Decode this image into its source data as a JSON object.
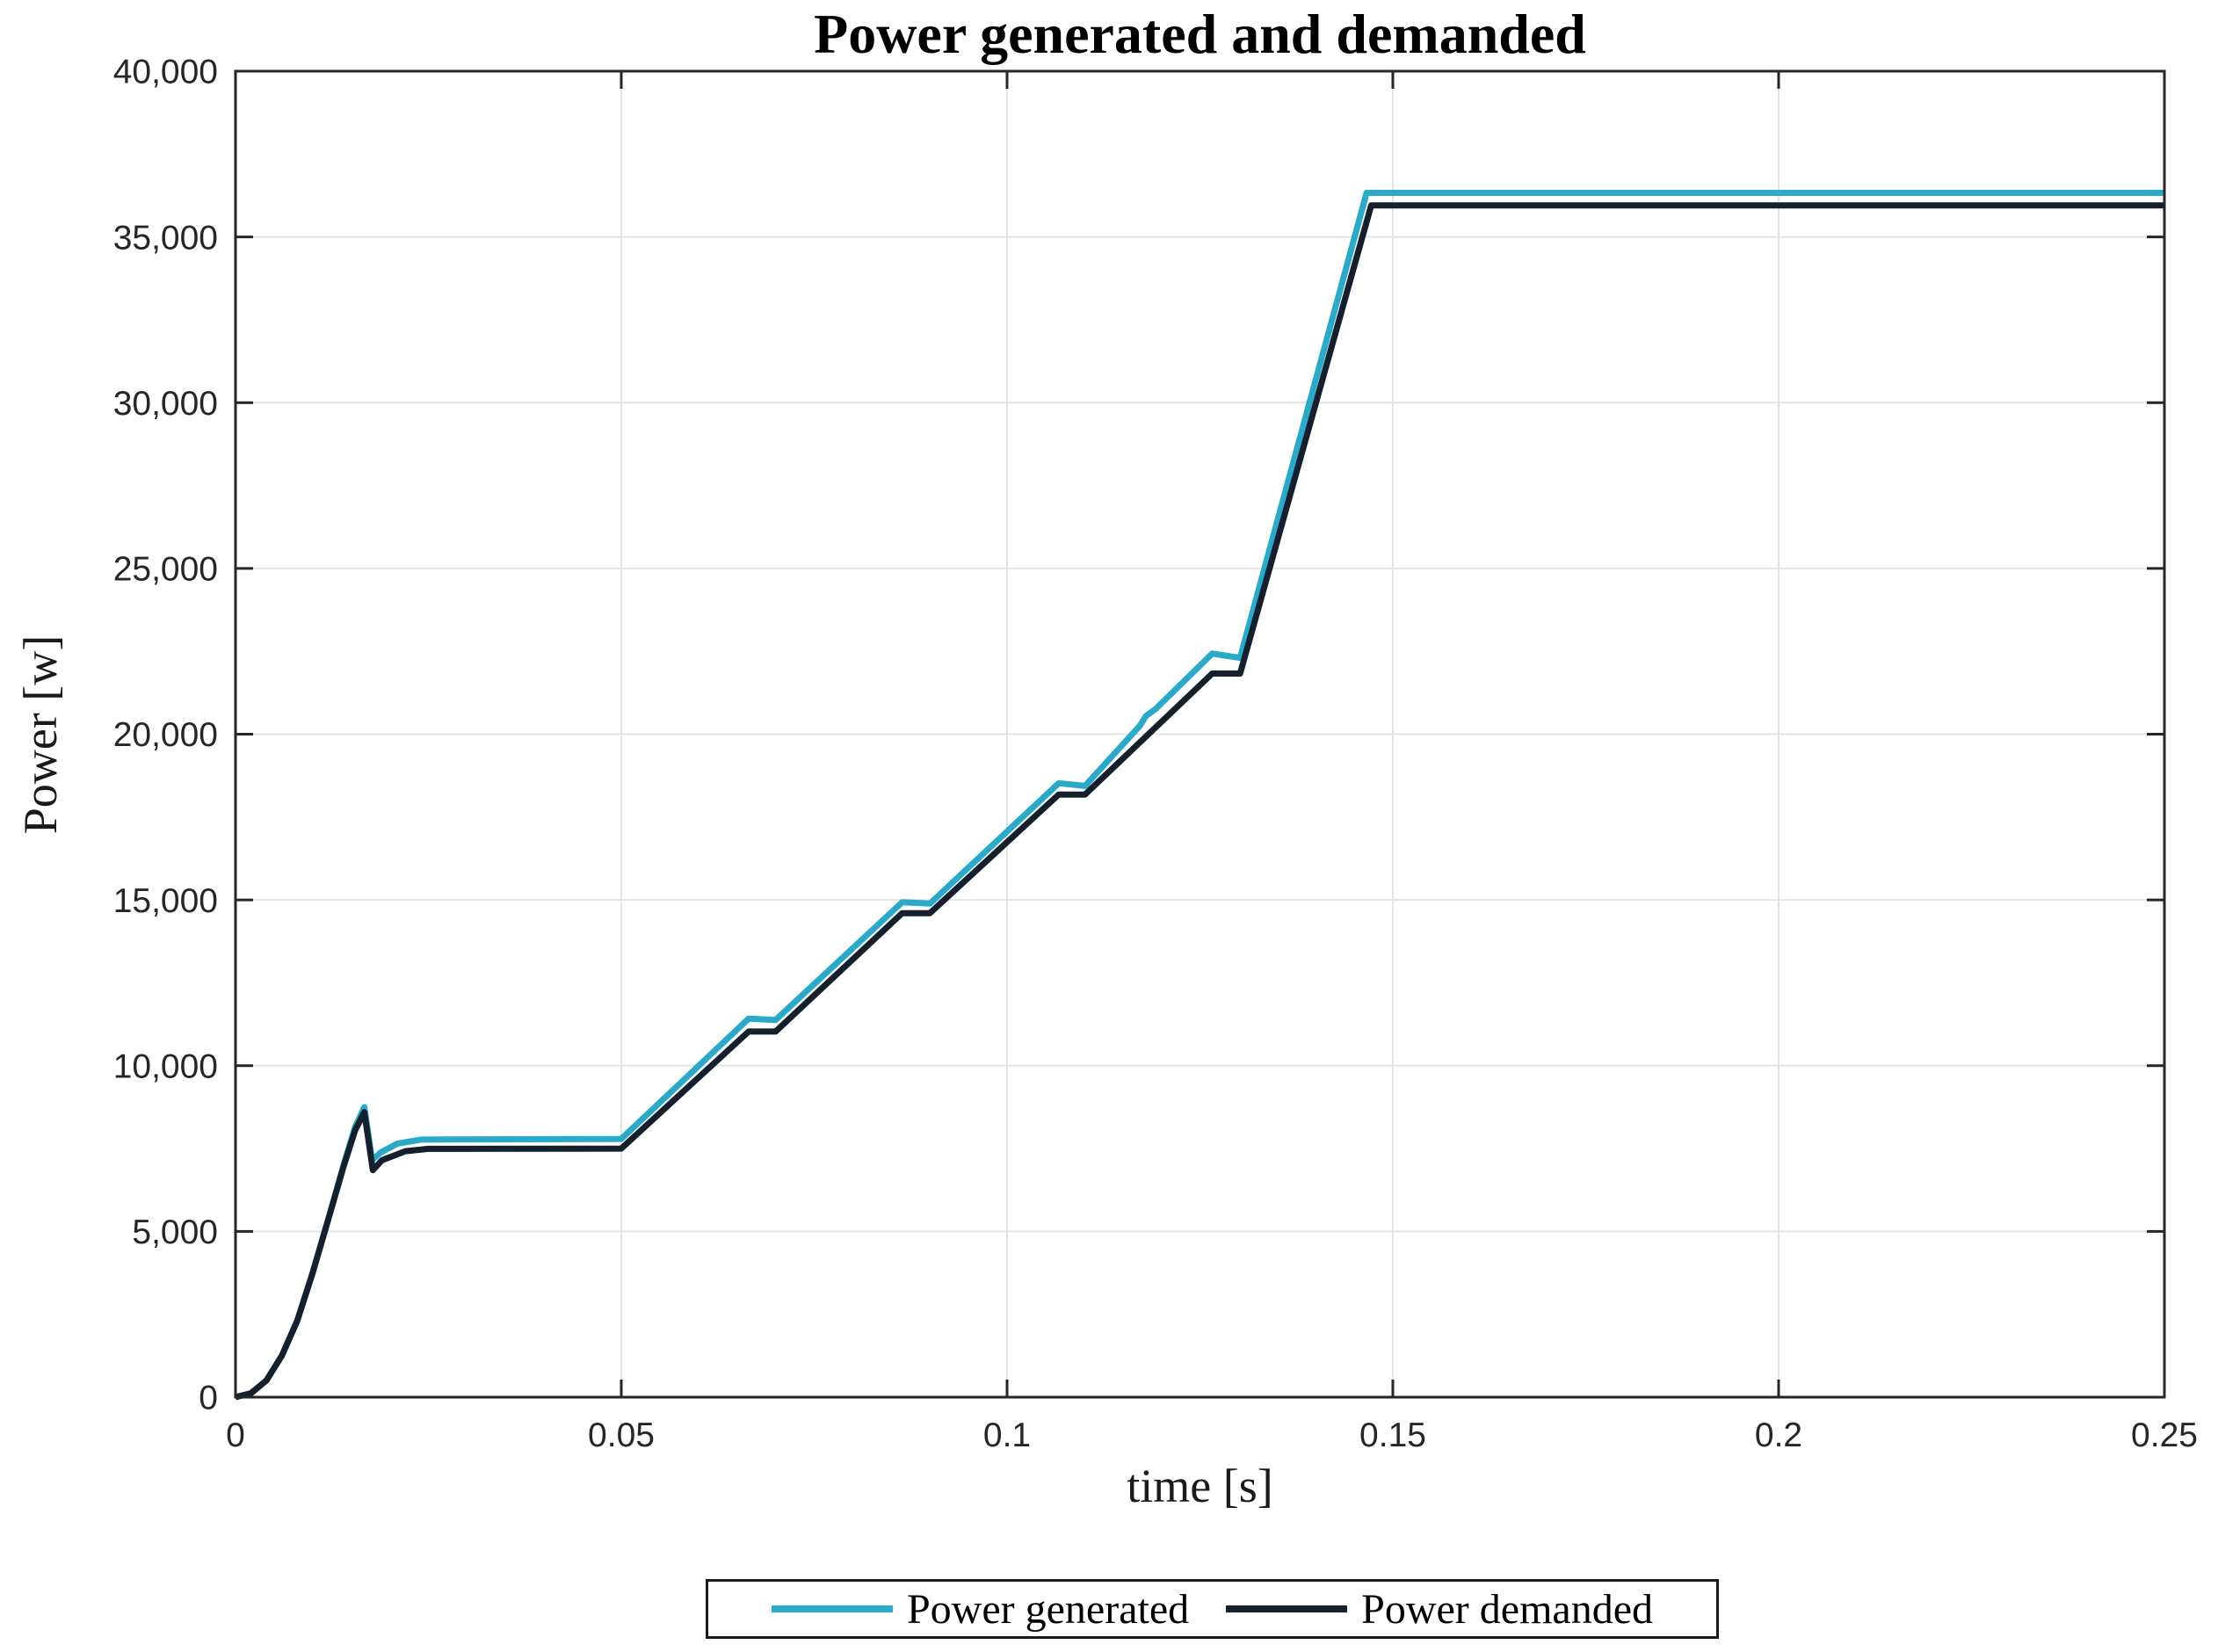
{
  "title": "Power generated and demanded",
  "axes": {
    "xlabel": "time [s]",
    "ylabel": "Power [w]"
  },
  "legend": [
    {
      "label": "Power generated",
      "color": "#2aa9c9"
    },
    {
      "label": "Power demanded",
      "color": "#15202f"
    }
  ],
  "colors": {
    "grid": "#e4e4e4",
    "frame": "#262626",
    "generated": "#2aa9c9",
    "demanded": "#15202f"
  },
  "chart_data": {
    "type": "line",
    "title": "Power generated and demanded",
    "xlabel": "time [s]",
    "ylabel": "Power [w]",
    "xlim": [
      0,
      0.25
    ],
    "ylim": [
      0,
      40000
    ],
    "xticks": [
      0,
      0.05,
      0.1,
      0.15,
      0.2,
      0.25
    ],
    "yticks": [
      0,
      5000,
      10000,
      15000,
      20000,
      25000,
      30000,
      35000,
      40000
    ],
    "grid": true,
    "legend_position": "below",
    "series": [
      {
        "name": "Power generated",
        "color": "#2aa9c9",
        "points": [
          [
            0,
            0
          ],
          [
            0.002,
            120
          ],
          [
            0.004,
            500
          ],
          [
            0.006,
            1250
          ],
          [
            0.008,
            2300
          ],
          [
            0.01,
            3750
          ],
          [
            0.012,
            5350
          ],
          [
            0.014,
            7000
          ],
          [
            0.0155,
            8150
          ],
          [
            0.0167,
            8750
          ],
          [
            0.0177,
            7150
          ],
          [
            0.0188,
            7380
          ],
          [
            0.021,
            7650
          ],
          [
            0.024,
            7770
          ],
          [
            0.05,
            7790
          ],
          [
            0.0665,
            11420
          ],
          [
            0.07,
            11380
          ],
          [
            0.0864,
            14930
          ],
          [
            0.09,
            14890
          ],
          [
            0.1067,
            18520
          ],
          [
            0.1101,
            18440
          ],
          [
            0.1172,
            20250
          ],
          [
            0.118,
            20550
          ],
          [
            0.1192,
            20750
          ],
          [
            0.1266,
            22430
          ],
          [
            0.1302,
            22300
          ],
          [
            0.1466,
            36330
          ],
          [
            0.25,
            36330
          ]
        ]
      },
      {
        "name": "Power demanded",
        "color": "#15202f",
        "points": [
          [
            0,
            0
          ],
          [
            0.002,
            120
          ],
          [
            0.004,
            500
          ],
          [
            0.006,
            1250
          ],
          [
            0.008,
            2300
          ],
          [
            0.01,
            3750
          ],
          [
            0.012,
            5350
          ],
          [
            0.014,
            6950
          ],
          [
            0.0155,
            8050
          ],
          [
            0.0167,
            8600
          ],
          [
            0.0178,
            6850
          ],
          [
            0.019,
            7150
          ],
          [
            0.022,
            7420
          ],
          [
            0.025,
            7490
          ],
          [
            0.05,
            7500
          ],
          [
            0.0665,
            11030
          ],
          [
            0.07,
            11030
          ],
          [
            0.0864,
            14600
          ],
          [
            0.09,
            14600
          ],
          [
            0.1067,
            18180
          ],
          [
            0.1101,
            18180
          ],
          [
            0.1266,
            21830
          ],
          [
            0.1302,
            21830
          ],
          [
            0.1472,
            35950
          ],
          [
            0.25,
            35950
          ]
        ]
      }
    ]
  }
}
